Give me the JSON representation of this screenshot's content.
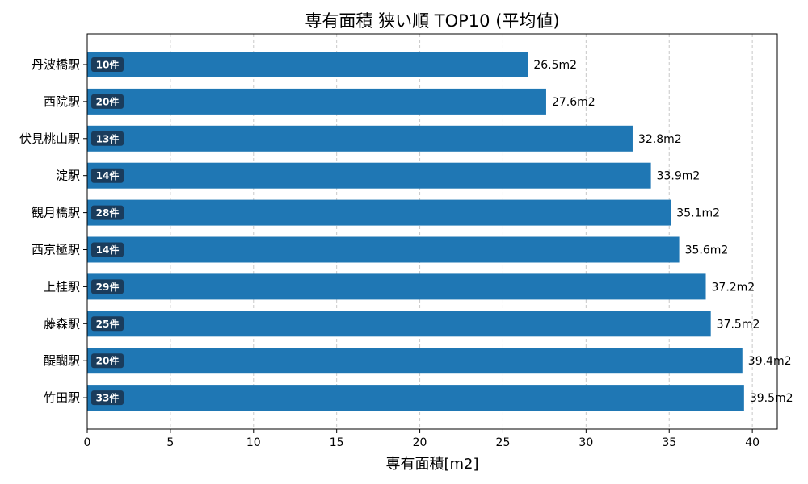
{
  "chart_data": {
    "type": "bar",
    "orientation": "horizontal",
    "title": "専有面積 狭い順 TOP10 (平均値)",
    "xlabel": "専有面積[m2]",
    "ylabel": "",
    "xlim": [
      0,
      41.5
    ],
    "xticks": [
      0,
      5,
      10,
      15,
      20,
      25,
      30,
      35,
      40
    ],
    "grid": "x-dashed",
    "categories": [
      "丹波橋駅",
      "西院駅",
      "伏見桃山駅",
      "淀駅",
      "観月橋駅",
      "西京極駅",
      "上桂駅",
      "藤森駅",
      "醍醐駅",
      "竹田駅"
    ],
    "values": [
      26.5,
      27.6,
      32.8,
      33.9,
      35.1,
      35.6,
      37.2,
      37.5,
      39.4,
      39.5
    ],
    "value_labels": [
      "26.5m2",
      "27.6m2",
      "32.8m2",
      "33.9m2",
      "35.1m2",
      "35.6m2",
      "37.2m2",
      "37.5m2",
      "39.4m2",
      "39.5m2"
    ],
    "count_labels": [
      "10件",
      "20件",
      "13件",
      "14件",
      "28件",
      "14件",
      "29件",
      "25件",
      "20件",
      "33件"
    ],
    "colors": {
      "bar": "#1f77b4",
      "badge": "#1a3c5c",
      "grid": "#c8c8c8"
    }
  }
}
